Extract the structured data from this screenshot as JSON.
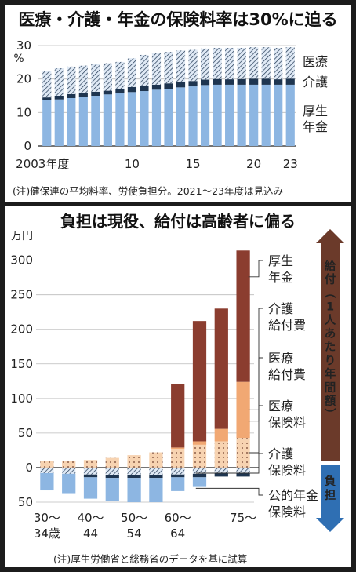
{
  "chart_data": [
    {
      "type": "bar",
      "title": "医療・介護・年金の保険料率は30%に迫る",
      "ylabel": "%",
      "ylim": [
        0,
        30
      ],
      "yticks": [
        0,
        10,
        20,
        30
      ],
      "x_tick_labels": [
        {
          "year": 2003,
          "label": "2003年度"
        },
        {
          "year": 2010,
          "label": "10"
        },
        {
          "year": 2015,
          "label": "15"
        },
        {
          "year": 2020,
          "label": "20"
        },
        {
          "year": 2023,
          "label": "23"
        }
      ],
      "categories": [
        2003,
        2004,
        2005,
        2006,
        2007,
        2008,
        2009,
        2010,
        2011,
        2012,
        2013,
        2014,
        2015,
        2016,
        2017,
        2018,
        2019,
        2020,
        2021,
        2022,
        2023
      ],
      "series": [
        {
          "name": "厚生年金",
          "values": [
            13.6,
            13.9,
            14.3,
            14.6,
            15.0,
            15.4,
            15.7,
            16.1,
            16.4,
            16.8,
            17.1,
            17.5,
            17.8,
            18.2,
            18.3,
            18.3,
            18.3,
            18.3,
            18.3,
            18.3,
            18.3
          ]
        },
        {
          "name": "介護",
          "values": [
            0.9,
            1.1,
            1.2,
            1.2,
            1.2,
            1.1,
            1.2,
            1.5,
            1.5,
            1.5,
            1.6,
            1.7,
            1.6,
            1.6,
            1.7,
            1.6,
            1.7,
            1.8,
            1.8,
            1.6,
            1.8
          ]
        },
        {
          "name": "医療",
          "values": [
            7.9,
            8.2,
            8.2,
            8.2,
            8.2,
            8.2,
            8.2,
            8.6,
            9.3,
            9.5,
            9.4,
            9.3,
            9.3,
            9.3,
            9.3,
            9.4,
            9.3,
            9.4,
            9.4,
            9.4,
            9.4
          ]
        }
      ],
      "legend_labels": [
        "医療",
        "介護",
        "厚生\n年金"
      ],
      "note": "(注)健保連の平均料率、労使負担分。2021～23年度は見込み",
      "colors": {
        "pension": "#8db6e2",
        "care": "#1e3550",
        "medical_hatch": "#1e3550",
        "medical_bg": "#dfe9f5"
      }
    },
    {
      "type": "bar",
      "title": "負担は現役、給付は高齢者に偏る",
      "ylabel": "万円",
      "ylim": [
        -50,
        320
      ],
      "yticks": [
        -50,
        0,
        50,
        100,
        150,
        200,
        250,
        300
      ],
      "ytick_labels": [
        "50",
        "0",
        "50",
        "100",
        "150",
        "200",
        "250",
        "300"
      ],
      "x_tick_labels": [
        "30～\n34歳",
        "40～\n44",
        "50～\n54",
        "60～\n64",
        "75～"
      ],
      "categories": [
        "30～34",
        "35～39",
        "40～44",
        "45～49",
        "50～54",
        "55～59",
        "60～64",
        "65～69",
        "70～74",
        "75～"
      ],
      "benefits": [
        {
          "name": "医療給付費",
          "values": [
            10,
            10,
            11,
            14,
            18,
            22,
            27,
            33,
            38,
            43
          ]
        },
        {
          "name": "介護給付費",
          "values": [
            0,
            0,
            0,
            0,
            0,
            0,
            2,
            5,
            18,
            81
          ]
        },
        {
          "name": "厚生年金",
          "values": [
            0,
            0,
            0,
            0,
            0,
            0,
            92,
            174,
            174,
            190
          ]
        }
      ],
      "burdens": [
        {
          "name": "医療保険料",
          "values": [
            -8,
            -9,
            -10,
            -11,
            -11,
            -11,
            -10,
            -9,
            -8,
            -8
          ]
        },
        {
          "name": "介護保険料",
          "values": [
            0,
            0,
            -4,
            -4,
            -4,
            -4,
            -4,
            -5,
            -5,
            -5
          ]
        },
        {
          "name": "公的年金保険料",
          "values": [
            -25,
            -28,
            -31,
            -33,
            -35,
            -35,
            -20,
            -14,
            0,
            0
          ]
        }
      ],
      "labels": {
        "pension": "厚生\n年金",
        "care_benefit": "介護\n給付費",
        "medical_benefit": "医療\n給付費",
        "medical_premium": "医療\n保険料",
        "care_premium": "介護\n保険料",
        "pension_premium": "公的年金\n保険料"
      },
      "arrow_benefit": "給付(1人あたり年間額)",
      "arrow_burden": "負担",
      "note": "(注)厚生労働省と総務省のデータを基に試算",
      "colors": {
        "pension": "#8b3d2f",
        "care": "#f1a873",
        "medical": "#f7d3b1",
        "premium_blue": "#8db6e2",
        "premium_dark": "#1e3550",
        "arrow_brown": "#6b3a2a",
        "arrow_blue": "#2f6fb3"
      }
    }
  ]
}
